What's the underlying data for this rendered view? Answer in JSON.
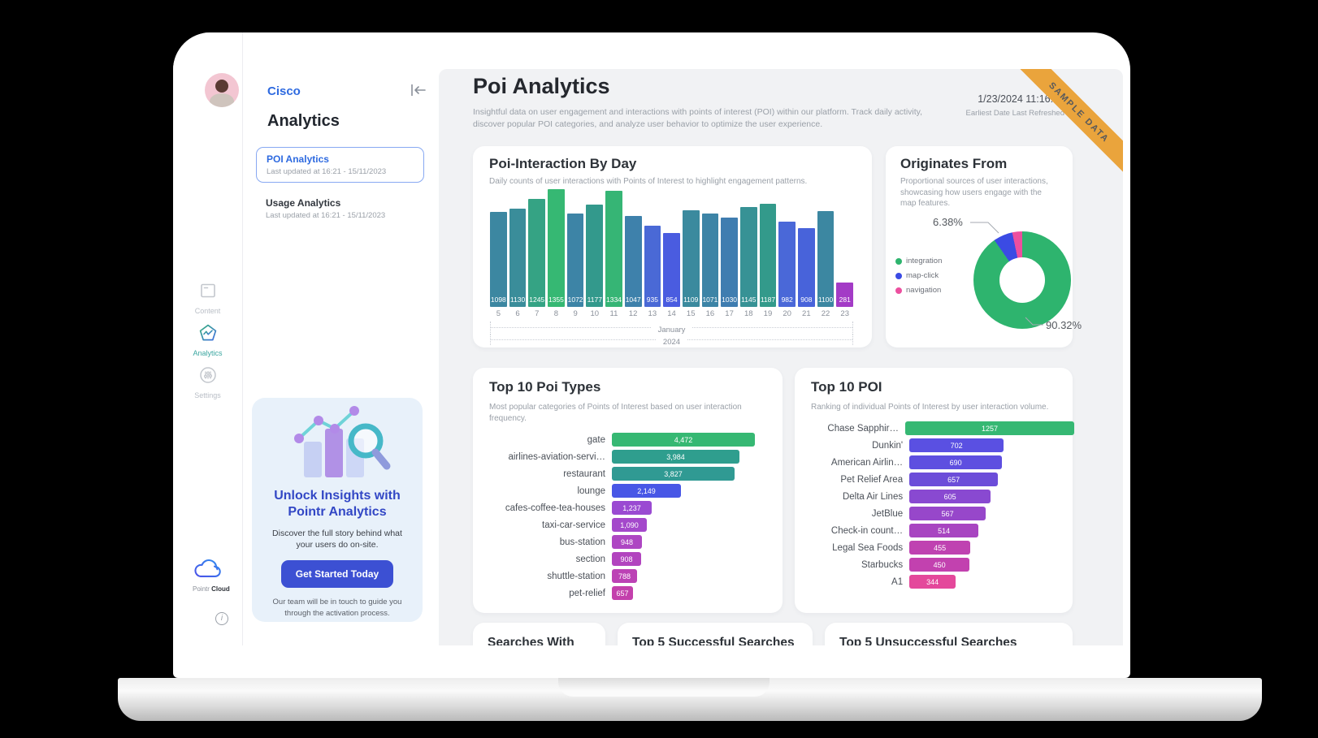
{
  "window": {
    "ribbon": "SAMPLE DATA",
    "datetime": "1/23/2024 11:16:57",
    "datetime_caption": "Earliest Date Last Refreshed"
  },
  "rail": {
    "items": [
      {
        "label": "Content"
      },
      {
        "label": "Analytics",
        "active": true
      },
      {
        "label": "Settings"
      }
    ],
    "brand_light": "Pointr",
    "brand_bold": "Cloud"
  },
  "sidebar": {
    "org": "Cisco",
    "heading": "Analytics",
    "items": [
      {
        "label": "POI Analytics",
        "sub": "Last updated at 16:21 - 15/11/2023",
        "active": true
      },
      {
        "label": "Usage Analytics",
        "sub": "Last updated at 16:21 - 15/11/2023",
        "active": false
      }
    ],
    "promo": {
      "title": "Unlock Insights with Pointr Analytics",
      "body": "Discover the full story behind what your users do on-site.",
      "cta": "Get Started Today",
      "footer": "Our team will be in touch to guide you through the activation process."
    }
  },
  "header": {
    "title": "Poi Analytics",
    "description": "Insightful data on user engagement and interactions with points of interest (POI) within our platform. Track daily activity, discover popular POI categories, and analyze user behavior to optimize the user experience."
  },
  "chart_data": [
    {
      "id": "poi_interaction_by_day",
      "type": "bar",
      "title": "Poi-Interaction By Day",
      "subtitle": "Daily counts of user interactions with Points of Interest to highlight engagement patterns.",
      "x": [
        "5",
        "6",
        "7",
        "8",
        "9",
        "10",
        "11",
        "12",
        "13",
        "14",
        "15",
        "16",
        "17",
        "18",
        "19",
        "20",
        "21",
        "22",
        "23"
      ],
      "x_groups": [
        "January",
        "2024"
      ],
      "values": [
        1098,
        1130,
        1245,
        1355,
        1072,
        1177,
        1334,
        1047,
        935,
        854,
        1109,
        1071,
        1030,
        1145,
        1187,
        982,
        908,
        1100,
        281
      ],
      "colors": [
        "#3c87a1",
        "#3a8d9a",
        "#35a384",
        "#36b873",
        "#3d84a6",
        "#33998c",
        "#36b575",
        "#3e81ab",
        "#4a69d6",
        "#4a5ce0",
        "#3b8a9e",
        "#3d84a6",
        "#3f7db0",
        "#379295",
        "#339a8b",
        "#4a68d8",
        "#4863da",
        "#3c87a1",
        "#a33bc6"
      ],
      "ylim": [
        0,
        1355
      ],
      "xlabel": "",
      "ylabel": ""
    },
    {
      "id": "originates_from",
      "type": "pie",
      "title": "Originates From",
      "subtitle": "Proportional sources of user interactions, showcasing how users engage with the map features.",
      "slices": [
        {
          "name": "integration",
          "pct": 90.32,
          "color": "#2eb46e"
        },
        {
          "name": "map-click",
          "pct": 6.38,
          "color": "#3b4be4"
        },
        {
          "name": "navigation",
          "pct": 3.3,
          "color": "#ec4f9f"
        }
      ],
      "callouts": [
        "6.38%",
        "90.32%"
      ],
      "legend_position": "left"
    },
    {
      "id": "top_10_poi_types",
      "type": "bar",
      "title": "Top 10 Poi Types",
      "subtitle": "Most popular categories of Points of Interest based on user interaction frequency.",
      "categories": [
        "gate",
        "airlines-aviation-servi…",
        "restaurant",
        "lounge",
        "cafes-coffee-tea-houses",
        "taxi-car-service",
        "bus-station",
        "section",
        "shuttle-station",
        "pet-relief"
      ],
      "values": [
        4472,
        3984,
        3827,
        2149,
        1237,
        1090,
        948,
        908,
        788,
        657
      ],
      "value_labels": [
        "4,472",
        "3,984",
        "3,827",
        "2,149",
        "1,237",
        "1,090",
        "948",
        "908",
        "788",
        "657"
      ],
      "colors": [
        "#36b873",
        "#2f9e8e",
        "#309a93",
        "#4857e6",
        "#9a4ad2",
        "#a448cb",
        "#ae46c3",
        "#b244bf",
        "#bc42b5",
        "#c340ac"
      ],
      "xmax": 4472
    },
    {
      "id": "top_10_poi",
      "type": "bar",
      "title": "Top 10 POI",
      "subtitle": "Ranking of individual Points of Interest by user interaction volume.",
      "categories": [
        "Chase Sapphir…",
        "Dunkin'",
        "American Airlin…",
        "Pet Relief Area",
        "Delta Air Lines",
        "JetBlue",
        "Check-in count…",
        "Legal Sea Foods",
        "Starbucks",
        "A1"
      ],
      "values": [
        1257,
        702,
        690,
        657,
        605,
        567,
        514,
        455,
        450,
        344
      ],
      "value_labels": [
        "1257",
        "702",
        "690",
        "657",
        "605",
        "567",
        "514",
        "455",
        "450",
        "344"
      ],
      "colors": [
        "#36b873",
        "#5a50e2",
        "#5e4fe0",
        "#6c4dd9",
        "#8949d1",
        "#9747ca",
        "#a845c1",
        "#bf42b1",
        "#c241af",
        "#e4489b"
      ],
      "xmax": 1257
    }
  ],
  "bottom_cards": [
    {
      "title": "Searches With"
    },
    {
      "title": "Top 5 Successful Searches"
    },
    {
      "title": "Top 5 Unsuccessful Searches"
    }
  ]
}
